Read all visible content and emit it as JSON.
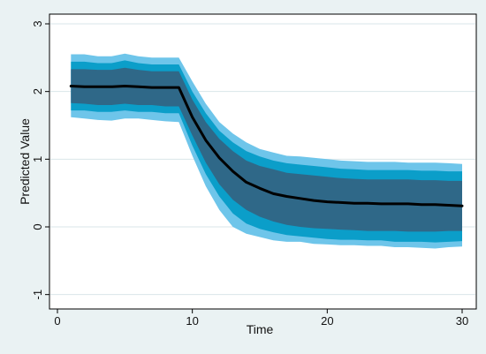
{
  "chart_data": {
    "type": "area",
    "title": "",
    "xlabel": "Time",
    "ylabel": "Predicted Value",
    "xlim": [
      0,
      30
    ],
    "ylim": [
      -1,
      3
    ],
    "x_ticks": [
      0,
      10,
      20,
      30
    ],
    "y_ticks": [
      -1,
      0,
      1,
      2,
      3
    ],
    "x_tick_labels": [
      "0",
      "10",
      "20",
      "30"
    ],
    "y_tick_labels": [
      "-1",
      "0",
      "1",
      "2",
      "3"
    ],
    "grid": true,
    "legend": "none",
    "x": [
      1,
      2,
      3,
      4,
      5,
      6,
      7,
      8,
      9,
      10,
      11,
      12,
      13,
      14,
      15,
      16,
      17,
      18,
      19,
      20,
      21,
      22,
      23,
      24,
      25,
      26,
      27,
      28,
      29,
      30
    ],
    "series": [
      {
        "values": [
          2.08,
          2.07,
          2.07,
          2.07,
          2.08,
          2.07,
          2.06,
          2.06,
          2.06,
          1.62,
          1.28,
          1.02,
          0.82,
          0.66,
          0.57,
          0.49,
          0.45,
          0.42,
          0.39,
          0.37,
          0.36,
          0.35,
          0.35,
          0.34,
          0.34,
          0.34,
          0.33,
          0.33,
          0.32,
          0.31
        ],
        "bands": [
          {
            "level": "outer",
            "lower": [
              1.62,
              1.6,
              1.58,
              1.57,
              1.6,
              1.6,
              1.58,
              1.56,
              1.55,
              1.05,
              0.6,
              0.25,
              0.0,
              -0.1,
              -0.15,
              -0.2,
              -0.22,
              -0.22,
              -0.25,
              -0.26,
              -0.27,
              -0.27,
              -0.28,
              -0.28,
              -0.3,
              -0.3,
              -0.31,
              -0.32,
              -0.3,
              -0.29
            ],
            "upper": [
              2.55,
              2.55,
              2.52,
              2.52,
              2.56,
              2.52,
              2.5,
              2.5,
              2.5,
              2.15,
              1.82,
              1.55,
              1.38,
              1.25,
              1.15,
              1.1,
              1.05,
              1.04,
              1.02,
              1.0,
              0.98,
              0.97,
              0.96,
              0.96,
              0.96,
              0.95,
              0.95,
              0.95,
              0.94,
              0.93
            ]
          },
          {
            "level": "middle",
            "lower": [
              1.72,
              1.72,
              1.7,
              1.7,
              1.72,
              1.7,
              1.7,
              1.68,
              1.68,
              1.2,
              0.78,
              0.45,
              0.2,
              0.05,
              -0.03,
              -0.08,
              -0.12,
              -0.14,
              -0.16,
              -0.18,
              -0.19,
              -0.19,
              -0.2,
              -0.2,
              -0.22,
              -0.22,
              -0.22,
              -0.23,
              -0.22,
              -0.21
            ],
            "upper": [
              2.44,
              2.44,
              2.42,
              2.42,
              2.46,
              2.42,
              2.4,
              2.4,
              2.4,
              2.0,
              1.68,
              1.42,
              1.25,
              1.12,
              1.04,
              0.98,
              0.94,
              0.92,
              0.9,
              0.88,
              0.86,
              0.85,
              0.84,
              0.84,
              0.84,
              0.84,
              0.83,
              0.83,
              0.82,
              0.82
            ]
          },
          {
            "level": "inner",
            "lower": [
              1.83,
              1.82,
              1.8,
              1.8,
              1.82,
              1.8,
              1.8,
              1.78,
              1.78,
              1.35,
              0.95,
              0.63,
              0.4,
              0.25,
              0.15,
              0.08,
              0.03,
              0.0,
              -0.02,
              -0.03,
              -0.04,
              -0.05,
              -0.06,
              -0.06,
              -0.06,
              -0.07,
              -0.07,
              -0.07,
              -0.06,
              -0.06
            ],
            "upper": [
              2.33,
              2.33,
              2.32,
              2.32,
              2.35,
              2.32,
              2.3,
              2.3,
              2.3,
              1.88,
              1.55,
              1.3,
              1.12,
              0.98,
              0.9,
              0.85,
              0.8,
              0.78,
              0.76,
              0.74,
              0.72,
              0.71,
              0.7,
              0.7,
              0.7,
              0.7,
              0.69,
              0.69,
              0.68,
              0.68
            ]
          }
        ]
      }
    ],
    "colors": {
      "outer_band": "#6ec5ea",
      "middle_band": "#0b9ec9",
      "inner_band": "#2f6888",
      "line": "#000000",
      "plot_bg": "#ffffff",
      "page_bg": "#eaf2f3",
      "grid": "#d9e6ea"
    }
  }
}
